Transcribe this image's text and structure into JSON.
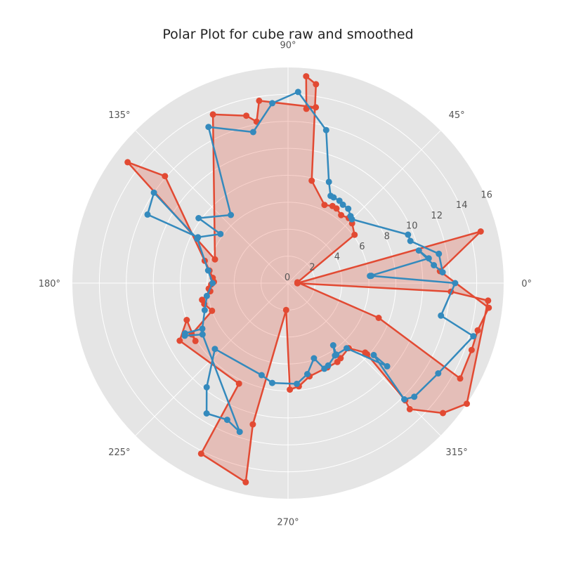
{
  "chart_data": {
    "type": "polar-line",
    "title": "Polar Plot for cube raw and smoothed",
    "theta_ticks": [
      "0°",
      "45°",
      "90°",
      "135°",
      "180°",
      "225°",
      "270°",
      "315°"
    ],
    "r_ticks": [
      "0",
      "2",
      "4",
      "6",
      "8",
      "10",
      "12",
      "14",
      "16"
    ],
    "rlim": [
      0,
      16
    ],
    "grid": true,
    "theta_grid_step_deg": 45,
    "series": [
      {
        "style": "raw",
        "color": "#E24A33",
        "fill": true,
        "points": [
          [
            0,
            0.7
          ],
          [
            15,
            14.8
          ],
          [
            4.5,
            11.3
          ],
          [
            353,
            15.0
          ],
          [
            346,
            14.5
          ],
          [
            340,
            14.5
          ],
          [
            331,
            14.6
          ],
          [
            339,
            7.2
          ],
          [
            4.6,
            0.7
          ],
          [
            36,
            6.1
          ],
          [
            43,
            6.5
          ],
          [
            47,
            6.6
          ],
          [
            52,
            6.4
          ],
          [
            57,
            6.6
          ],
          [
            60,
            6.6
          ],
          [
            65,
            6.4
          ],
          [
            77,
            7.8
          ],
          [
            82,
            14.9
          ],
          [
            85,
            15.4
          ],
          [
            84,
            13.0
          ],
          [
            81,
            13.2
          ],
          [
            99,
            13.7
          ],
          [
            101,
            12.2
          ],
          [
            104,
            12.8
          ],
          [
            114,
            13.7
          ],
          [
            162,
            5.7
          ],
          [
            143,
            14.9
          ],
          [
            139,
            12.1
          ],
          [
            165,
            6.4
          ],
          [
            171,
            5.9
          ],
          [
            176,
            5.6
          ],
          [
            179,
            5.5
          ],
          [
            181,
            5.7
          ],
          [
            184,
            5.9
          ],
          [
            186,
            5.8
          ],
          [
            191,
            6.5
          ],
          [
            194,
            6.4
          ],
          [
            200,
            6.0
          ],
          [
            208,
            8.1
          ],
          [
            212,
            8.1
          ],
          [
            200,
            8.0
          ],
          [
            208,
            9.1
          ],
          [
            244,
            8.3
          ],
          [
            243,
            14.2
          ],
          [
            258,
            15.1
          ],
          [
            256,
            10.8
          ],
          [
            266,
            2.0
          ],
          [
            271,
            7.9
          ],
          [
            276,
            7.7
          ],
          [
            283,
            7.1
          ],
          [
            295,
            6.9
          ],
          [
            302,
            6.9
          ],
          [
            305,
            6.8
          ],
          [
            313,
            6.6
          ],
          [
            318,
            7.7
          ],
          [
            318,
            7.9
          ],
          [
            315,
            12.3
          ],
          [
            314,
            13.0
          ],
          [
            320,
            15.0
          ],
          [
            326,
            16.0
          ],
          [
            355,
            14.9
          ],
          [
            357,
            12.1
          ],
          [
            359,
            0.7
          ]
        ]
      },
      {
        "style": "smoothed",
        "color": "#348ABD",
        "fill": false,
        "points": [
          [
            5,
            6.1
          ],
          [
            10,
            10.6
          ],
          [
            14,
            10.0
          ],
          [
            7,
            10.9
          ],
          [
            4,
            11.5
          ],
          [
            11,
            11.4
          ],
          [
            19,
            9.6
          ],
          [
            22,
            9.6
          ],
          [
            45,
            6.7
          ],
          [
            47,
            6.8
          ],
          [
            51,
            7.1
          ],
          [
            55,
            7.1
          ],
          [
            58,
            7.2
          ],
          [
            62,
            7.2
          ],
          [
            64,
            7.2
          ],
          [
            68,
            8.1
          ],
          [
            76,
            11.7
          ],
          [
            87,
            14.2
          ],
          [
            95,
            13.4
          ],
          [
            103,
            11.5
          ],
          [
            117,
            13.0
          ],
          [
            130,
            6.6
          ],
          [
            144,
            8.2
          ],
          [
            144,
            6.2
          ],
          [
            153,
            7.5
          ],
          [
            154,
            11.6
          ],
          [
            146,
            12.0
          ],
          [
            154,
            7.5
          ],
          [
            171,
            6.0
          ],
          [
            180,
            5.6
          ],
          [
            189,
            6.1
          ],
          [
            198,
            6.5
          ],
          [
            208,
            7.2
          ],
          [
            206,
            8.5
          ],
          [
            207,
            8.6
          ],
          [
            211,
            7.4
          ],
          [
            252,
            11.6
          ],
          [
            246,
            11.1
          ],
          [
            238,
            11.4
          ],
          [
            232,
            9.8
          ],
          [
            222,
            7.3
          ],
          [
            254,
            7.1
          ],
          [
            261,
            7.5
          ],
          [
            275,
            7.5
          ],
          [
            282,
            6.9
          ],
          [
            289,
            5.9
          ],
          [
            293,
            6.9
          ],
          [
            296,
            6.8
          ],
          [
            303,
            6.4
          ],
          [
            306,
            5.7
          ],
          [
            304,
            6.4
          ],
          [
            312,
            6.5
          ],
          [
            320,
            9.6
          ],
          [
            320,
            8.3
          ],
          [
            315,
            12.2
          ],
          [
            318,
            12.6
          ],
          [
            329,
            13.0
          ],
          [
            344,
            14.3
          ],
          [
            348,
            11.6
          ],
          [
            0,
            12.4
          ],
          [
            5,
            6.2
          ]
        ]
      }
    ]
  }
}
